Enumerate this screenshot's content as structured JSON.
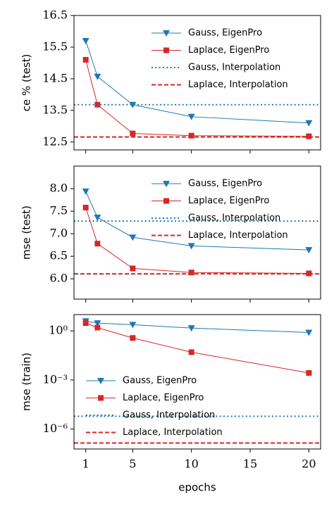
{
  "chart_data": [
    {
      "type": "line",
      "ylabel": "ce % (test)",
      "x": [
        1,
        2,
        5,
        10,
        20
      ],
      "xlim": [
        0,
        21
      ],
      "xticks": [
        1,
        5,
        10,
        15,
        20
      ],
      "xticklabels": false,
      "ylim": [
        12.25,
        16.5
      ],
      "yticks": [
        12.5,
        13.5,
        14.5,
        15.5,
        16.5
      ],
      "legend": "upper right",
      "series": [
        {
          "name": "Gauss, EigenPro",
          "color": "#1f77b4",
          "marker": "triangle-down",
          "values": [
            15.7,
            14.57,
            13.68,
            13.3,
            13.1
          ]
        },
        {
          "name": "Laplace, EigenPro",
          "color": "#d62728",
          "marker": "square",
          "values": [
            15.1,
            13.68,
            12.77,
            12.7,
            12.68
          ]
        },
        {
          "name": "Gauss, Interpolation",
          "color": "#1f77b4",
          "linestyle": "dotted",
          "value": 13.68
        },
        {
          "name": "Laplace, Interpolation",
          "color": "#d62728",
          "linestyle": "dashed",
          "value": 12.66
        }
      ]
    },
    {
      "type": "line",
      "ylabel": "mse (test)",
      "x": [
        1,
        2,
        5,
        10,
        20
      ],
      "xlim": [
        0,
        21
      ],
      "xticks": [
        1,
        5,
        10,
        15,
        20
      ],
      "xticklabels": false,
      "ylim": [
        5.55,
        8.5
      ],
      "yticks": [
        {
          "value": 6,
          "label": "6.0"
        },
        6.5,
        {
          "value": 7,
          "label": "7.0"
        },
        7.5,
        {
          "value": 8,
          "label": "8.0"
        }
      ],
      "legend": "upper right",
      "series": [
        {
          "name": "Gauss, EigenPro",
          "color": "#1f77b4",
          "marker": "triangle-down",
          "values": [
            7.94,
            7.36,
            6.92,
            6.73,
            6.64
          ]
        },
        {
          "name": "Laplace, EigenPro",
          "color": "#d62728",
          "marker": "square",
          "values": [
            7.58,
            6.78,
            6.23,
            6.14,
            6.12
          ]
        },
        {
          "name": "Gauss, Interpolation",
          "color": "#1f77b4",
          "linestyle": "dotted",
          "value": 7.28
        },
        {
          "name": "Laplace, Interpolation",
          "color": "#d62728",
          "linestyle": "dashed",
          "value": 6.11
        }
      ]
    },
    {
      "type": "line",
      "ylabel": "mse (train)",
      "xlabel": "epochs",
      "x": [
        1,
        2,
        5,
        10,
        20
      ],
      "xlim": [
        0,
        21
      ],
      "xticks": [
        1,
        5,
        10,
        15,
        20
      ],
      "xticklabels": true,
      "yscale": "log",
      "ylim": [
        6e-08,
        10
      ],
      "yticks": [
        {
          "value": 1e-06,
          "label": "10⁻⁶"
        },
        {
          "value": 0.001,
          "label": "10⁻³"
        },
        {
          "value": 1,
          "label": "10⁰"
        }
      ],
      "legend": "lower left",
      "series": [
        {
          "name": "Gauss, EigenPro",
          "color": "#1f77b4",
          "marker": "triangle-down",
          "values": [
            4,
            3,
            2.4,
            1.5,
            0.8
          ]
        },
        {
          "name": "Laplace, EigenPro",
          "color": "#d62728",
          "marker": "square",
          "values": [
            3,
            1.6,
            0.37,
            0.05,
            0.0027
          ]
        },
        {
          "name": "Gauss, Interpolation",
          "color": "#1f77b4",
          "linestyle": "dotted",
          "value": 6e-06
        },
        {
          "name": "Laplace, Interpolation",
          "color": "#d62728",
          "linestyle": "dashed",
          "value": 1.4e-07
        }
      ]
    }
  ]
}
